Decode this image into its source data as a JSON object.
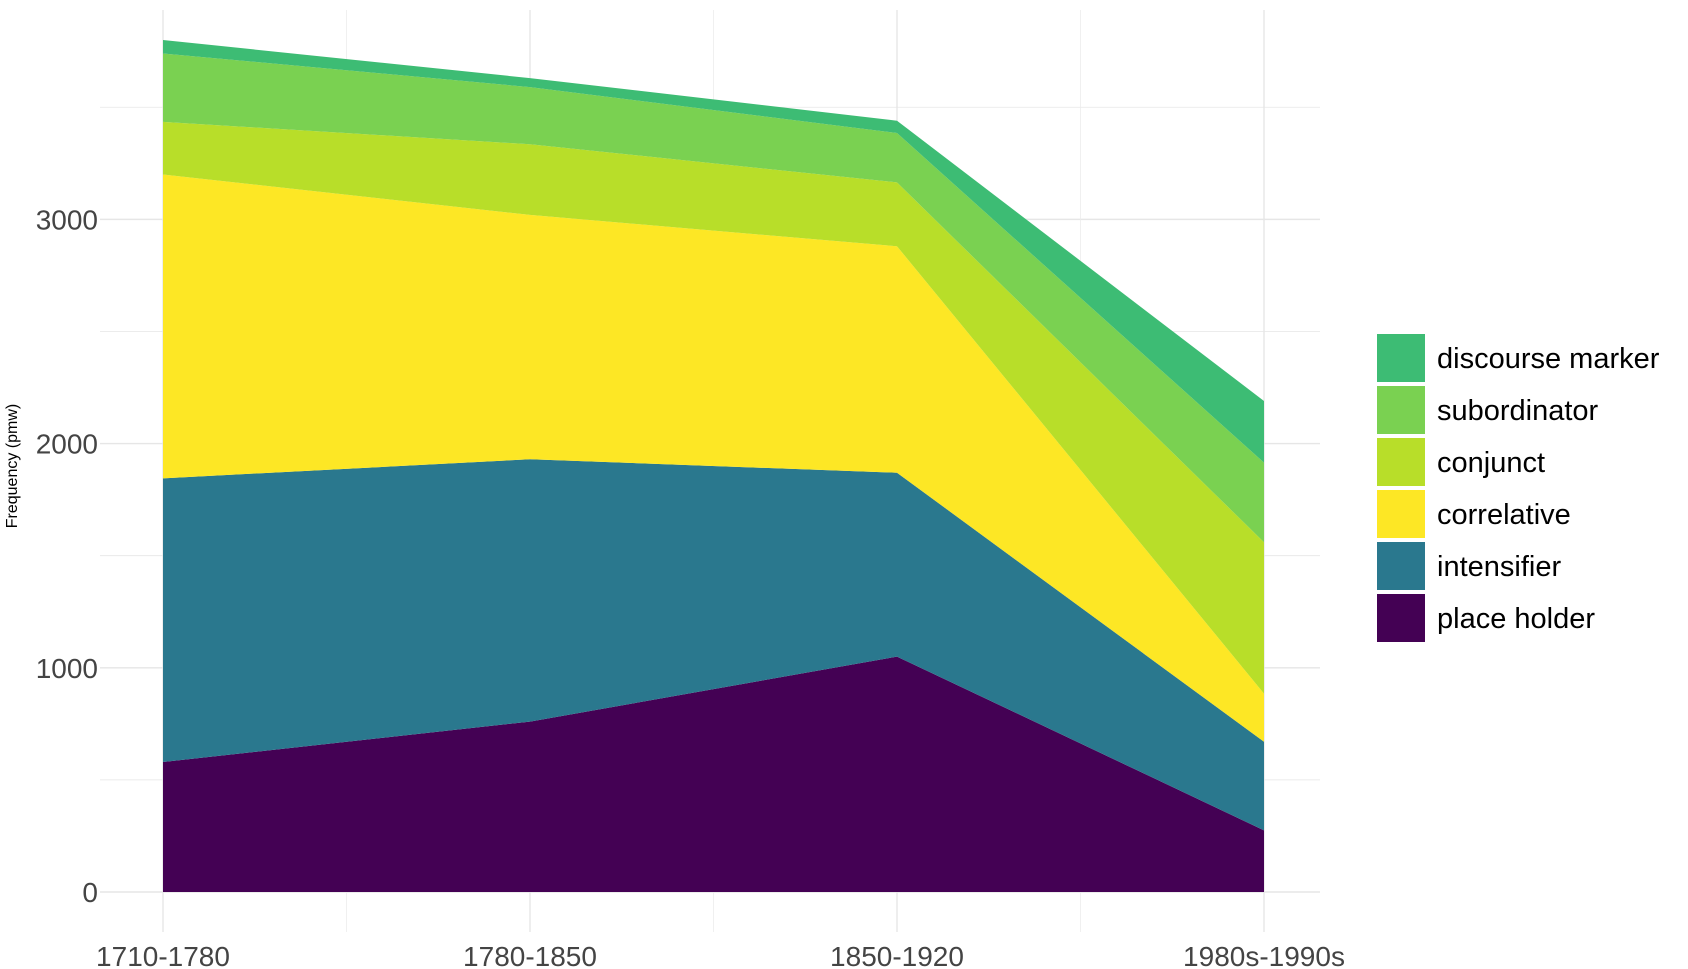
{
  "chart_data": {
    "type": "area",
    "stacked": true,
    "title": "",
    "xlabel": "",
    "ylabel": "Frequency (pmw)",
    "categories": [
      "1710-1780",
      "1780-1850",
      "1850-1920",
      "1980s-1990s"
    ],
    "ylim": [
      0,
      3800
    ],
    "yticks": [
      0,
      1000,
      2000,
      3000
    ],
    "grid": true,
    "legend_position": "right",
    "series": [
      {
        "name": "place holder",
        "color": "#440154",
        "values": [
          580,
          760,
          1050,
          275
        ]
      },
      {
        "name": "intensifier",
        "color": "#2a788e",
        "values": [
          1265,
          1170,
          820,
          395
        ]
      },
      {
        "name": "correlative",
        "color": "#fde725",
        "values": [
          1355,
          1090,
          1010,
          215
        ]
      },
      {
        "name": "conjunct",
        "color": "#b8de29",
        "values": [
          235,
          315,
          285,
          675
        ]
      },
      {
        "name": "subordinator",
        "color": "#7ad151",
        "values": [
          305,
          255,
          220,
          355
        ]
      },
      {
        "name": "discourse marker",
        "color": "#3dbc74",
        "values": [
          60,
          40,
          55,
          275
        ]
      }
    ],
    "legend_order": [
      "discourse marker",
      "subordinator",
      "conjunct",
      "correlative",
      "intensifier",
      "place holder"
    ]
  }
}
